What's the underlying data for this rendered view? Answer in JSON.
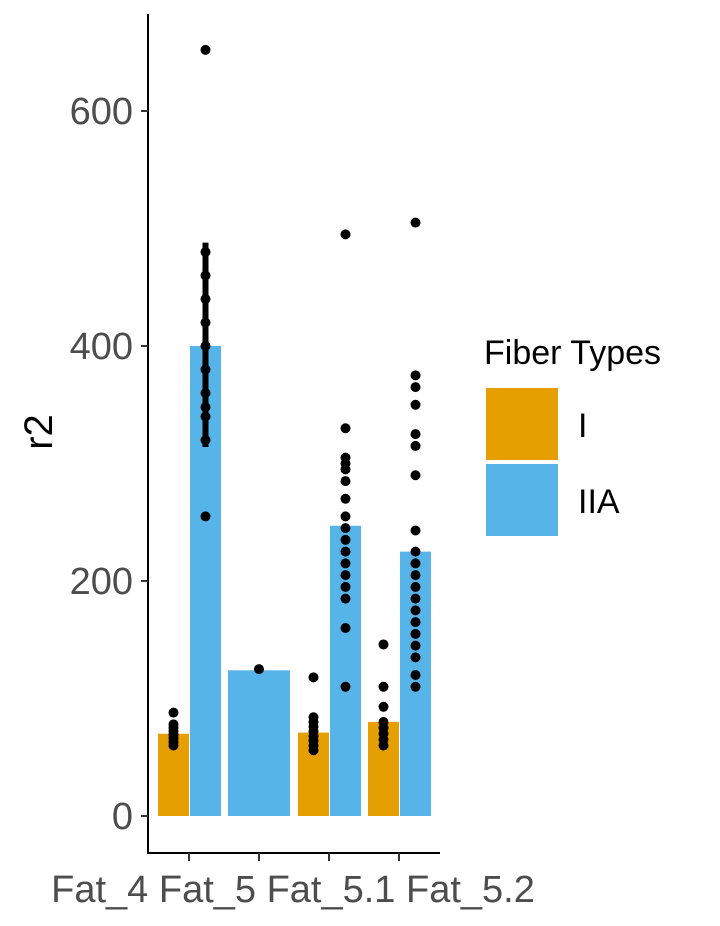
{
  "chart_data": {
    "type": "bar",
    "title": "",
    "xlabel": "",
    "ylabel": "r2",
    "ylim": [
      -30,
      680
    ],
    "yticks": [
      0,
      200,
      400,
      600
    ],
    "categories": [
      "Fat_4",
      "Fat_5",
      "Fat_5.1",
      "Fat_5.2"
    ],
    "category_axis_text": "Fat_4 Fat_5 Fat_5.1 Fat_5.2",
    "legend": {
      "title": "Fiber Types",
      "position": "right"
    },
    "series": [
      {
        "name": "I",
        "color": "#E69F00",
        "values": [
          70,
          null,
          71,
          80
        ]
      },
      {
        "name": "IIA",
        "color": "#56B4E9",
        "values": [
          400,
          124,
          247,
          225
        ]
      }
    ],
    "error_bars": [
      {
        "category": "Fat_4",
        "series": "IIA",
        "low": 314,
        "high": 488
      }
    ],
    "points": [
      {
        "category": "Fat_4",
        "series": "I",
        "values": [
          60,
          63,
          66,
          69,
          72,
          75,
          78,
          88
        ]
      },
      {
        "category": "Fat_4",
        "series": "IIA",
        "values": [
          255,
          320,
          340,
          348,
          360,
          380,
          400,
          420,
          440,
          460,
          480,
          652
        ]
      },
      {
        "category": "Fat_5",
        "series": "IIA",
        "values": [
          125
        ]
      },
      {
        "category": "Fat_5.1",
        "series": "I",
        "values": [
          56,
          60,
          64,
          68,
          72,
          76,
          80,
          84,
          118
        ]
      },
      {
        "category": "Fat_5.1",
        "series": "IIA",
        "values": [
          110,
          160,
          185,
          195,
          205,
          215,
          225,
          235,
          245,
          255,
          270,
          285,
          295,
          300,
          305,
          330,
          495
        ]
      },
      {
        "category": "Fat_5.2",
        "series": "I",
        "values": [
          60,
          65,
          70,
          75,
          80,
          93,
          110,
          146
        ]
      },
      {
        "category": "Fat_5.2",
        "series": "IIA",
        "values": [
          110,
          120,
          135,
          145,
          155,
          165,
          175,
          185,
          195,
          205,
          215,
          225,
          243,
          290,
          315,
          325,
          350,
          365,
          375,
          505
        ]
      }
    ]
  }
}
